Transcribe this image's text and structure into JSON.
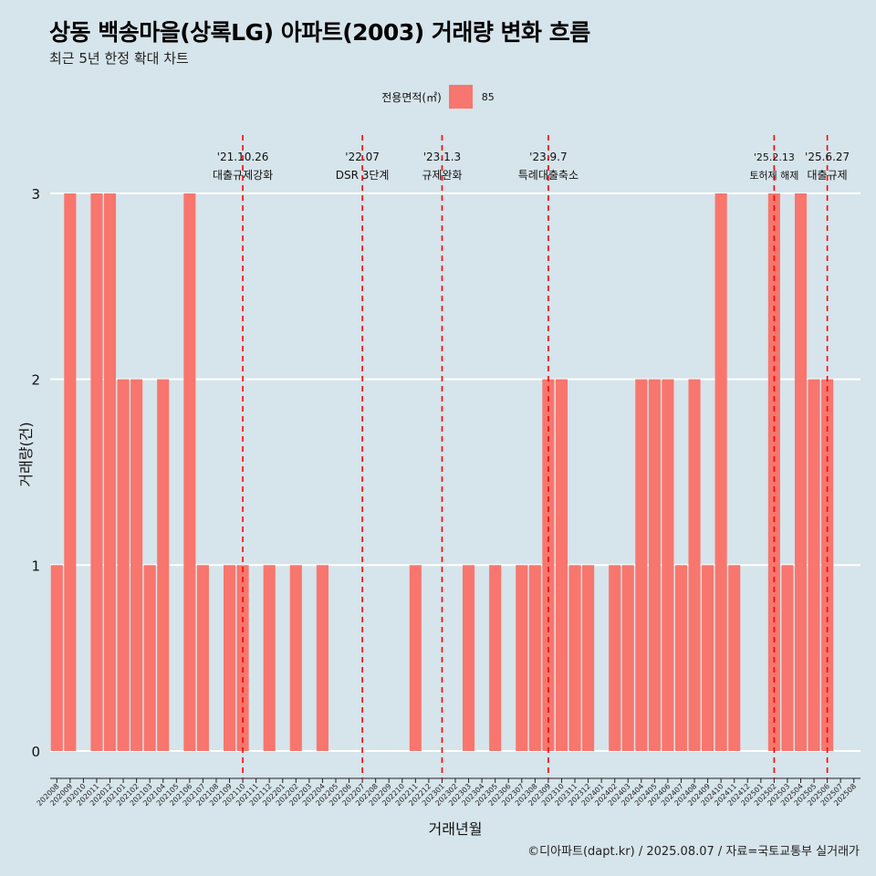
{
  "chart_data": {
    "type": "bar",
    "title": "상동 백송마을(상록LG) 아파트(2003) 거래량 변화 흐름",
    "subtitle": "최근 5년 한정 확대 차트",
    "xlabel": "거래년월",
    "ylabel": "거래량(건)",
    "ylim": [
      0,
      3
    ],
    "yticks": [
      "0",
      "1",
      "2",
      "3"
    ],
    "grid": "horizontal",
    "legend": {
      "title": "전용면적(㎡)",
      "position": "top"
    },
    "categories": [
      "202008",
      "202009",
      "202010",
      "202011",
      "202012",
      "202101",
      "202102",
      "202103",
      "202104",
      "202105",
      "202106",
      "202107",
      "202108",
      "202109",
      "202110",
      "202111",
      "202112",
      "202201",
      "202202",
      "202203",
      "202204",
      "202205",
      "202206",
      "202207",
      "202208",
      "202209",
      "202210",
      "202211",
      "202212",
      "202301",
      "202302",
      "202303",
      "202304",
      "202305",
      "202306",
      "202307",
      "202308",
      "202309",
      "202310",
      "202311",
      "202312",
      "202401",
      "202402",
      "202403",
      "202404",
      "202405",
      "202406",
      "202407",
      "202408",
      "202409",
      "202410",
      "202411",
      "202412",
      "202501",
      "202502",
      "202503",
      "202504",
      "202505",
      "202506",
      "202507",
      "202508"
    ],
    "series": [
      {
        "name": "85",
        "color": "#f8766d",
        "values": [
          1,
          3,
          0,
          3,
          3,
          2,
          2,
          1,
          2,
          0,
          3,
          1,
          0,
          1,
          1,
          0,
          1,
          0,
          1,
          0,
          1,
          0,
          0,
          0,
          0,
          0,
          0,
          1,
          0,
          0,
          0,
          1,
          0,
          1,
          0,
          1,
          1,
          2,
          2,
          1,
          1,
          0,
          1,
          1,
          2,
          2,
          2,
          1,
          2,
          1,
          3,
          1,
          0,
          0,
          3,
          1,
          3,
          2,
          2,
          0,
          0
        ]
      }
    ],
    "annotations": [
      {
        "x": "202110",
        "date": "'21.10.26",
        "label": "대출규제강화"
      },
      {
        "x": "202207",
        "date": "'22.07",
        "label": "DSR 3단계"
      },
      {
        "x": "202301",
        "date": "'23.1.3",
        "label": "규제완화"
      },
      {
        "x": "202309",
        "date": "'23.9.7",
        "label": "특례대출축소"
      },
      {
        "x": "202502",
        "date": "'25.2.13",
        "label": "토허제 해제"
      },
      {
        "x": "202506",
        "date": "'25.6.27",
        "label": "대출규제"
      }
    ]
  },
  "caption": "©디아파트(dapt.kr) / 2025.08.07 / 자료=국토교통부 실거래가",
  "colors": {
    "background": "#d6e4eb",
    "bar": "#f8766d",
    "vline": "#ff0000",
    "grid": "#ffffff"
  }
}
